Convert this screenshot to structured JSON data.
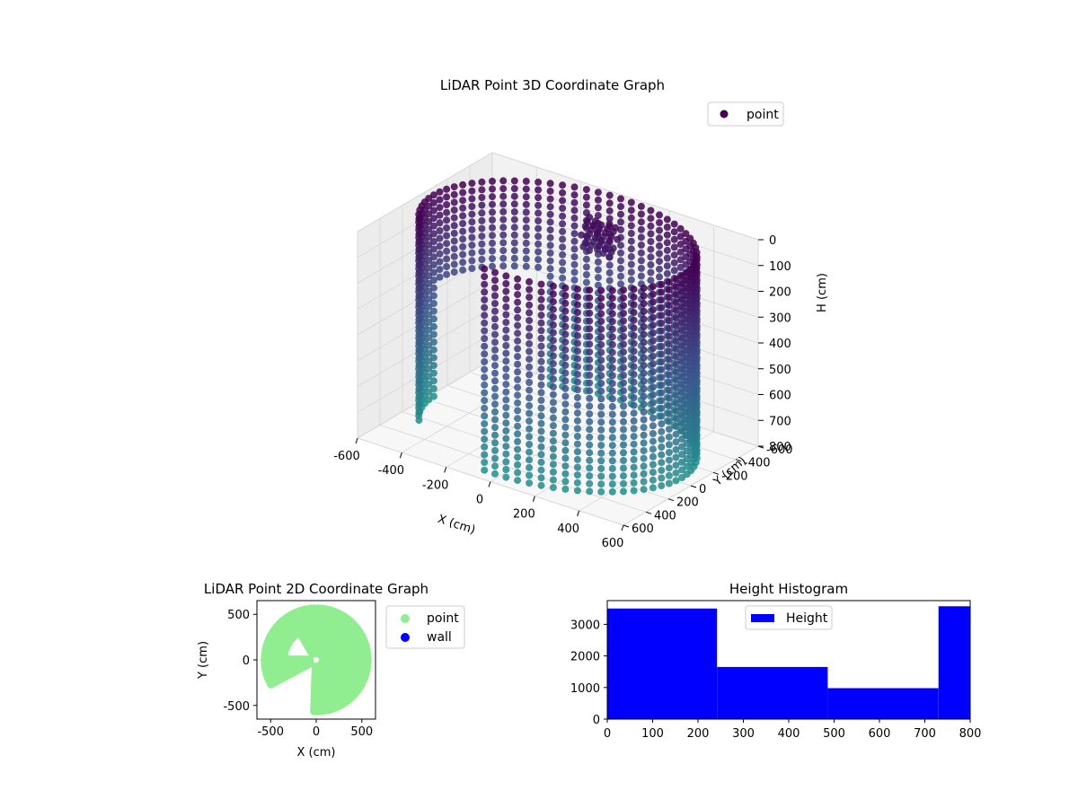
{
  "chart_data": [
    {
      "type": "scatter",
      "title": "LiDAR Point 3D Coordinate Graph",
      "xlabel": "X (cm)",
      "ylabel": "Y (cm)",
      "zlabel": "H (cm)",
      "xlim": [
        -600,
        600
      ],
      "ylim": [
        -600,
        600
      ],
      "zlim": [
        0,
        800
      ],
      "z_inverted": true,
      "x_ticks": [
        "-600",
        "-400",
        "-200",
        "0",
        "200",
        "400",
        "600"
      ],
      "y_ticks": [
        "-600",
        "-400",
        "-200",
        "0",
        "200",
        "400",
        "600"
      ],
      "z_ticks": [
        "0",
        "100",
        "200",
        "300",
        "400",
        "500",
        "600",
        "700",
        "800"
      ],
      "legend": {
        "placement": "upper-right",
        "entries": [
          "point"
        ]
      },
      "grid": true,
      "colormap": [
        "#440154",
        "#3b528b",
        "#21918c"
      ],
      "series": [
        {
          "name": "point",
          "description_shape": "cylindrical wall of points, radius ~550 cm, heights 0-800 cm, partial arc"
        }
      ]
    },
    {
      "type": "scatter",
      "title": "LiDAR Point 2D Coordinate Graph",
      "xlabel": "X (cm)",
      "ylabel": "Y (cm)",
      "xlim": [
        -650,
        650
      ],
      "ylim": [
        -650,
        650
      ],
      "x_ticks": [
        "-500",
        "0",
        "500"
      ],
      "y_ticks": [
        "-500",
        "0",
        "500"
      ],
      "legend": {
        "placement": "outside-right",
        "entries": [
          "point",
          "wall"
        ]
      },
      "series": [
        {
          "name": "point",
          "color": "#90ee90"
        },
        {
          "name": "wall",
          "color": "#0000ff"
        }
      ]
    },
    {
      "type": "bar",
      "title": "Height Histogram",
      "xlim": [
        0,
        800
      ],
      "ylim": [
        0,
        3750
      ],
      "x_ticks": [
        "0",
        "100",
        "200",
        "300",
        "400",
        "500",
        "600",
        "700",
        "800"
      ],
      "y_ticks": [
        "0",
        "1000",
        "2000",
        "3000"
      ],
      "bin_edges": [
        0,
        242,
        486,
        730,
        800
      ],
      "values": [
        3500,
        1650,
        980,
        3570
      ],
      "color": "#0000ff",
      "legend": {
        "placement": "upper-center",
        "entries": [
          "Height"
        ]
      },
      "series": [
        {
          "name": "Height"
        }
      ]
    }
  ]
}
